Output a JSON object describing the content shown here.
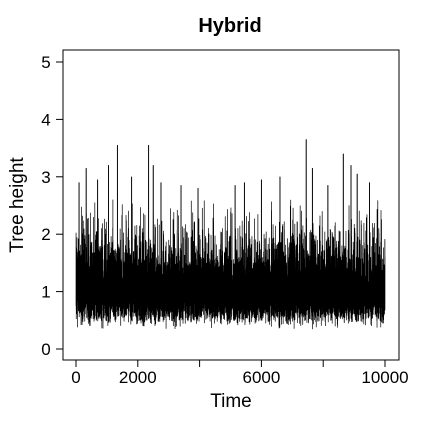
{
  "chart_data": {
    "type": "line",
    "title": "Hybrid",
    "xlabel": "Time",
    "ylabel": "Tree height",
    "xlim": [
      0,
      10000
    ],
    "ylim": [
      0,
      5
    ],
    "x_ticks": [
      0,
      2000,
      4000,
      6000,
      8000,
      10000
    ],
    "x_tick_labels": [
      "0",
      "2000",
      "",
      "6000",
      "",
      "10000"
    ],
    "y_ticks": [
      0,
      1,
      2,
      3,
      4,
      5
    ],
    "y_tick_labels": [
      "0",
      "1",
      "2",
      "3",
      "4",
      "5"
    ],
    "grid": false,
    "legend": "none",
    "series_color": "#000000",
    "trace_summary": {
      "samples": 10000,
      "typical_low": 0.35,
      "typical_high": 2.0,
      "median": 1.0
    },
    "peaks": [
      {
        "x": 100,
        "y": 2.9
      },
      {
        "x": 330,
        "y": 3.15
      },
      {
        "x": 700,
        "y": 2.95
      },
      {
        "x": 1050,
        "y": 3.2
      },
      {
        "x": 1340,
        "y": 3.55
      },
      {
        "x": 1800,
        "y": 3.0
      },
      {
        "x": 2350,
        "y": 3.55
      },
      {
        "x": 2500,
        "y": 3.2
      },
      {
        "x": 2750,
        "y": 2.9
      },
      {
        "x": 3400,
        "y": 2.85
      },
      {
        "x": 3950,
        "y": 2.8
      },
      {
        "x": 5150,
        "y": 2.85
      },
      {
        "x": 5450,
        "y": 2.9
      },
      {
        "x": 6000,
        "y": 2.95
      },
      {
        "x": 6600,
        "y": 3.0
      },
      {
        "x": 7450,
        "y": 3.65
      },
      {
        "x": 7650,
        "y": 3.15
      },
      {
        "x": 8150,
        "y": 2.85
      },
      {
        "x": 8650,
        "y": 3.4
      },
      {
        "x": 8900,
        "y": 3.2
      },
      {
        "x": 9100,
        "y": 3.05
      },
      {
        "x": 9500,
        "y": 2.9
      }
    ]
  }
}
